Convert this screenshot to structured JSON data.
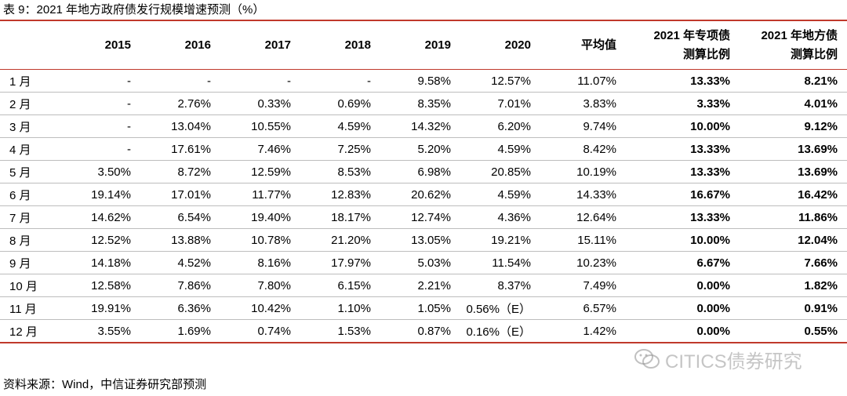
{
  "title": "表 9：2021 年地方政府债发行规模增速预测（%）",
  "headers": {
    "h2015": "2015",
    "h2016": "2016",
    "h2017": "2017",
    "h2018": "2018",
    "h2019": "2019",
    "h2020": "2020",
    "avg": "平均值",
    "special_l1": "2021 年专项债",
    "special_l2": "测算比例",
    "local_l1": "2021 年地方债",
    "local_l2": "测算比例"
  },
  "rows": [
    [
      "1 月",
      "-",
      "-",
      "-",
      "-",
      "9.58%",
      "12.57%",
      "11.07%",
      "13.33%",
      "8.21%"
    ],
    [
      "2 月",
      "-",
      "2.76%",
      "0.33%",
      "0.69%",
      "8.35%",
      "7.01%",
      "3.83%",
      "3.33%",
      "4.01%"
    ],
    [
      "3 月",
      "-",
      "13.04%",
      "10.55%",
      "4.59%",
      "14.32%",
      "6.20%",
      "9.74%",
      "10.00%",
      "9.12%"
    ],
    [
      "4 月",
      "-",
      "17.61%",
      "7.46%",
      "7.25%",
      "5.20%",
      "4.59%",
      "8.42%",
      "13.33%",
      "13.69%"
    ],
    [
      "5 月",
      "3.50%",
      "8.72%",
      "12.59%",
      "8.53%",
      "6.98%",
      "20.85%",
      "10.19%",
      "13.33%",
      "13.69%"
    ],
    [
      "6 月",
      "19.14%",
      "17.01%",
      "11.77%",
      "12.83%",
      "20.62%",
      "4.59%",
      "14.33%",
      "16.67%",
      "16.42%"
    ],
    [
      "7 月",
      "14.62%",
      "6.54%",
      "19.40%",
      "18.17%",
      "12.74%",
      "4.36%",
      "12.64%",
      "13.33%",
      "11.86%"
    ],
    [
      "8 月",
      "12.52%",
      "13.88%",
      "10.78%",
      "21.20%",
      "13.05%",
      "19.21%",
      "15.11%",
      "10.00%",
      "12.04%"
    ],
    [
      "9 月",
      "14.18%",
      "4.52%",
      "8.16%",
      "17.97%",
      "5.03%",
      "11.54%",
      "10.23%",
      "6.67%",
      "7.66%"
    ],
    [
      "10 月",
      "12.58%",
      "7.86%",
      "7.80%",
      "6.15%",
      "2.21%",
      "8.37%",
      "7.49%",
      "0.00%",
      "1.82%"
    ],
    [
      "11 月",
      "19.91%",
      "6.36%",
      "10.42%",
      "1.10%",
      "1.05%",
      "0.56%（E）",
      "6.57%",
      "0.00%",
      "0.91%"
    ],
    [
      "12 月",
      "3.55%",
      "1.69%",
      "0.74%",
      "1.53%",
      "0.87%",
      "0.16%（E）",
      "1.42%",
      "0.00%",
      "0.55%"
    ]
  ],
  "footnote": "资料来源：Wind，中信证券研究部预测",
  "watermark": "CITICS债券研究",
  "watermark_icon": "wechat-icon"
}
